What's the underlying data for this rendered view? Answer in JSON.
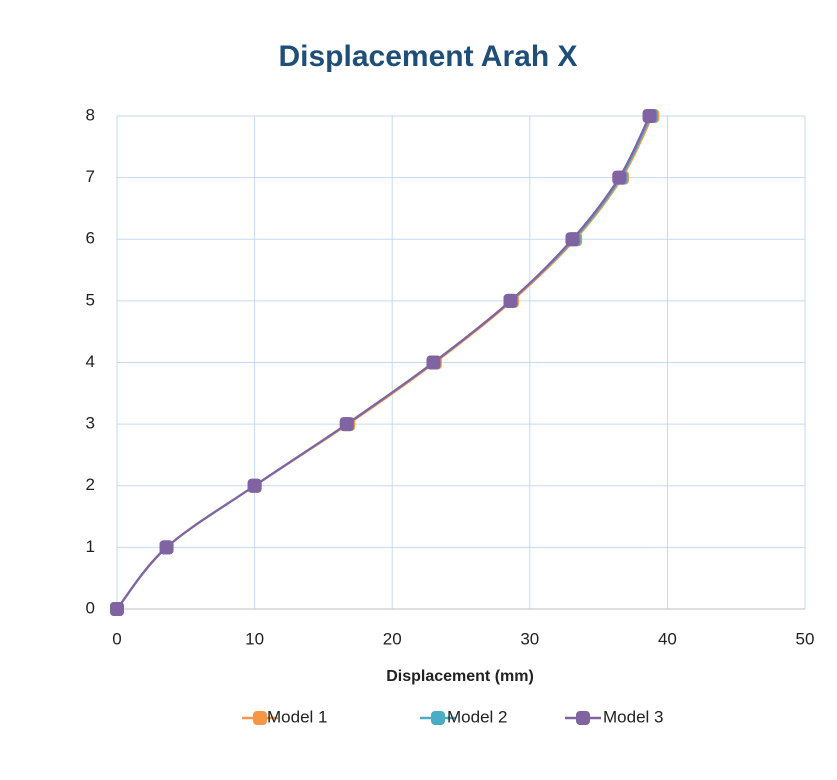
{
  "chart_data": {
    "type": "line",
    "title": "Displacement Arah X",
    "x_label": "Displacement (mm)",
    "xlim": [
      0,
      50
    ],
    "xticks": [
      0,
      10,
      20,
      30,
      40,
      50
    ],
    "ylim": [
      0,
      8
    ],
    "yticks": [
      0,
      1,
      2,
      3,
      4,
      5,
      6,
      7,
      8
    ],
    "grid": true,
    "legend": "bottom",
    "series": [
      {
        "name": "Model 1",
        "color": "#f79646",
        "x": [
          0,
          3.6,
          10.0,
          16.8,
          23.1,
          28.7,
          33.3,
          36.7,
          38.9
        ],
        "values": [
          0,
          1,
          2,
          3,
          4,
          5,
          6,
          7,
          8
        ]
      },
      {
        "name": "Model 2",
        "color": "#4bacc6",
        "x": [
          0,
          3.6,
          10.0,
          16.7,
          23.0,
          28.6,
          33.2,
          36.6,
          38.8
        ],
        "values": [
          0,
          1,
          2,
          3,
          4,
          5,
          6,
          7,
          8
        ]
      },
      {
        "name": "Model 3",
        "color": "#8064a2",
        "x": [
          0,
          3.6,
          10.0,
          16.7,
          23.0,
          28.6,
          33.1,
          36.5,
          38.7
        ],
        "values": [
          0,
          1,
          2,
          3,
          4,
          5,
          6,
          7,
          8
        ]
      }
    ]
  }
}
